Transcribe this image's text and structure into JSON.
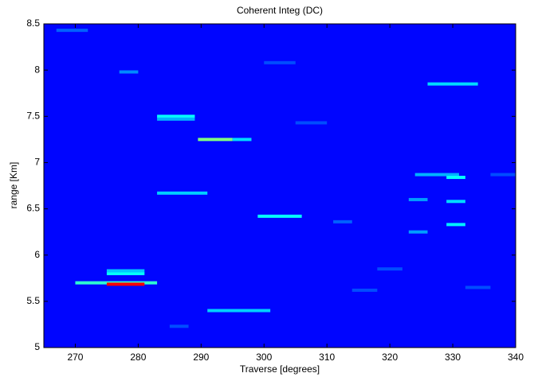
{
  "chart_data": {
    "type": "heatmap",
    "title": "Coherent Integ (DC)",
    "x_label": "Traverse [degrees]",
    "y_label": "range [Km]",
    "xlim": [
      265,
      340
    ],
    "ylim": [
      5,
      8.5
    ],
    "xticks": [
      270,
      280,
      290,
      300,
      310,
      320,
      330,
      340
    ],
    "yticks": [
      5,
      5.5,
      6,
      6.5,
      7,
      7.5,
      8,
      8.5
    ],
    "color_scale": "jet",
    "background_level": 0.13,
    "streaks": [
      {
        "x0": 270,
        "x1": 283,
        "y": 5.7,
        "level": 0.42
      },
      {
        "x0": 275,
        "x1": 281,
        "y": 5.685,
        "level": 0.88
      },
      {
        "x0": 275,
        "x1": 281,
        "y": 5.8,
        "level": 0.38
      },
      {
        "x0": 275,
        "x1": 281,
        "y": 5.83,
        "level": 0.32
      },
      {
        "x0": 289.5,
        "x1": 295,
        "y": 7.25,
        "level": 0.5
      },
      {
        "x0": 295,
        "x1": 298,
        "y": 7.25,
        "level": 0.34
      },
      {
        "x0": 283,
        "x1": 289,
        "y": 7.5,
        "level": 0.38
      },
      {
        "x0": 283,
        "x1": 289,
        "y": 7.47,
        "level": 0.3
      },
      {
        "x0": 283,
        "x1": 291,
        "y": 6.67,
        "level": 0.33
      },
      {
        "x0": 299,
        "x1": 306,
        "y": 6.42,
        "level": 0.38
      },
      {
        "x0": 291,
        "x1": 301,
        "y": 5.4,
        "level": 0.33
      },
      {
        "x0": 326,
        "x1": 334,
        "y": 7.85,
        "level": 0.34
      },
      {
        "x0": 324,
        "x1": 331,
        "y": 6.87,
        "level": 0.3
      },
      {
        "x0": 329,
        "x1": 332,
        "y": 6.84,
        "level": 0.38
      },
      {
        "x0": 329,
        "x1": 332,
        "y": 6.58,
        "level": 0.34
      },
      {
        "x0": 329,
        "x1": 332,
        "y": 6.33,
        "level": 0.36
      },
      {
        "x0": 323,
        "x1": 326,
        "y": 6.6,
        "level": 0.28
      },
      {
        "x0": 323,
        "x1": 326,
        "y": 6.25,
        "level": 0.28
      },
      {
        "x0": 267,
        "x1": 272,
        "y": 8.43,
        "level": 0.22
      },
      {
        "x0": 277,
        "x1": 280,
        "y": 7.98,
        "level": 0.26
      },
      {
        "x0": 305,
        "x1": 310,
        "y": 7.43,
        "level": 0.2
      },
      {
        "x0": 311,
        "x1": 314,
        "y": 6.36,
        "level": 0.22
      },
      {
        "x0": 318,
        "x1": 322,
        "y": 5.85,
        "level": 0.2
      },
      {
        "x0": 336,
        "x1": 340,
        "y": 6.87,
        "level": 0.2
      },
      {
        "x0": 300,
        "x1": 305,
        "y": 8.08,
        "level": 0.2
      },
      {
        "x0": 285,
        "x1": 288,
        "y": 5.23,
        "level": 0.2
      },
      {
        "x0": 314,
        "x1": 318,
        "y": 5.62,
        "level": 0.2
      },
      {
        "x0": 332,
        "x1": 336,
        "y": 5.65,
        "level": 0.2
      }
    ]
  }
}
